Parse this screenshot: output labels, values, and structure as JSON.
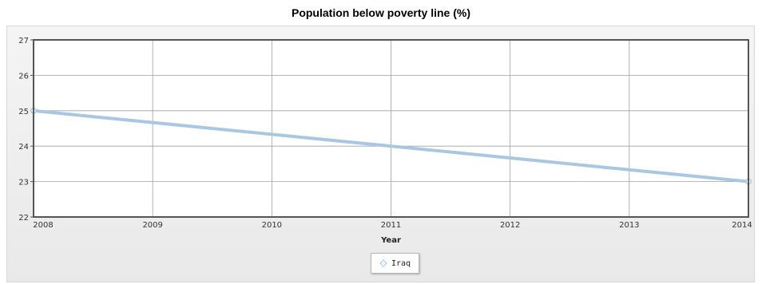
{
  "chart_data": {
    "type": "line",
    "title": "Population below poverty line (%)",
    "xlabel": "Year",
    "ylabel": "",
    "x": [
      2008,
      2014
    ],
    "xticks": [
      "2008",
      "2009",
      "2010",
      "2011",
      "2012",
      "2013",
      "2014"
    ],
    "yticks": [
      "22",
      "23",
      "24",
      "25",
      "26",
      "27"
    ],
    "xlim": [
      2008,
      2014
    ],
    "ylim": [
      22,
      27
    ],
    "grid": true,
    "legend": "bottom-center",
    "series": [
      {
        "name": "Iraq",
        "x": [
          2008,
          2014
        ],
        "values": [
          25,
          23
        ]
      }
    ],
    "colors": {
      "series": "#a9c6e3",
      "marker_fill": "#ffffff",
      "grid": "#a0a0a0",
      "frame": "#555555",
      "plot_bg": "#ffffff"
    }
  }
}
